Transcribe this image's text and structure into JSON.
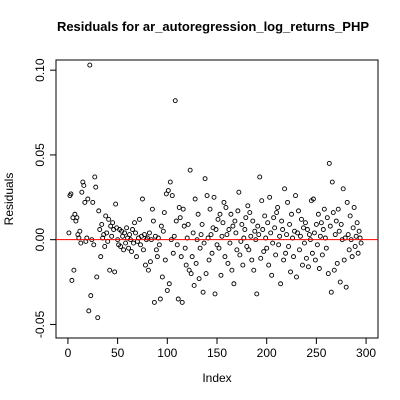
{
  "chart_data": {
    "type": "scatter",
    "title": "Residuals for ar_autoregression_log_returns_PHP",
    "xlabel": "Index",
    "ylabel": "Residuals",
    "xlim": [
      -12,
      312
    ],
    "xticks": [
      0,
      50,
      100,
      150,
      200,
      250,
      300
    ],
    "ylim": [
      -0.058,
      0.106
    ],
    "yticks": [
      -0.05,
      {
        "value": 0,
        "label": "0.00"
      },
      0.05,
      {
        "value": 0.1,
        "label": "0.10"
      }
    ],
    "hline": 0,
    "hline_color": "#ff0000",
    "color": "#000000",
    "values": [
      0.004,
      0.026,
      0.027,
      -0.024,
      0.013,
      -0.018,
      0.015,
      0.011,
      0.013,
      0.003,
      0.001,
      0.005,
      -0.002,
      0.028,
      0.034,
      0.032,
      0.022,
      -0.001,
      0.001,
      0.024,
      -0.042,
      0.103,
      -0.033,
      0.0,
      0.022,
      -0.003,
      0.037,
      0.031,
      -0.022,
      -0.046,
      0.017,
      0.006,
      -0.01,
      0.009,
      0.001,
      0.003,
      -0.004,
      0.014,
      0.004,
      -0.001,
      0.012,
      -0.018,
      0.008,
      0.002,
      0.01,
      0.006,
      -0.019,
      0.021,
      0.007,
      0.0,
      -0.003,
      0.006,
      -0.004,
      0.005,
      0.002,
      -0.006,
      0.004,
      -0.002,
      0.007,
      0.001,
      -0.005,
      0.003,
      0.0,
      -0.007,
      0.006,
      -0.002,
      0.01,
      0.004,
      -0.01,
      -0.001,
      0.001,
      0.012,
      -0.003,
      0.002,
      0.024,
      -0.006,
      0.003,
      -0.015,
      0.0,
      0.001,
      -0.018,
      0.004,
      -0.013,
      0.0,
      0.018,
      0.011,
      -0.037,
      0.002,
      -0.006,
      -0.01,
      0.001,
      -0.003,
      -0.035,
      0.008,
      -0.022,
      0.005,
      0.016,
      -0.012,
      0.027,
      -0.03,
      0.029,
      -0.026,
      0.034,
      0.0,
      0.026,
      -0.008,
      0.002,
      0.082,
      0.011,
      -0.003,
      -0.035,
      0.019,
      0.013,
      -0.01,
      -0.037,
      0.018,
      0.008,
      -0.005,
      -0.015,
      0.001,
      0.009,
      -0.018,
      0.041,
      -0.02,
      -0.01,
      0.004,
      -0.027,
      0.024,
      -0.014,
      0.0,
      0.015,
      -0.023,
      -0.005,
      0.003,
      0.009,
      -0.031,
      -0.002,
      0.036,
      -0.02,
      0.026,
      0.001,
      -0.012,
      0.018,
      0.003,
      -0.008,
      0.007,
      0.025,
      -0.032,
      0.006,
      -0.003,
      0.012,
      -0.005,
      0.015,
      -0.021,
      0.002,
      0.01,
      0.022,
      -0.01,
      0.019,
      0.003,
      -0.014,
      0.006,
      -0.002,
      0.015,
      -0.018,
      0.008,
      -0.026,
      0.011,
      0.004,
      -0.006,
      0.017,
      0.028,
      -0.009,
      -0.001,
      0.009,
      -0.015,
      0.001,
      0.006,
      0.013,
      -0.004,
      0.02,
      -0.006,
      0.016,
      0.002,
      -0.012,
      0.011,
      -0.018,
      0.005,
      0.0,
      -0.032,
      0.008,
      0.003,
      0.037,
      -0.011,
      0.023,
      0.006,
      -0.007,
      0.014,
      0.001,
      -0.005,
      0.01,
      -0.015,
      0.025,
      0.004,
      -0.021,
      -0.002,
      0.013,
      0.007,
      -0.009,
      0.016,
      0.019,
      -0.003,
      0.002,
      -0.026,
      0.011,
      0.006,
      -0.012,
      0.03,
      -0.008,
      0.003,
      0.022,
      -0.004,
      0.009,
      -0.019,
      0.015,
      0.001,
      -0.01,
      0.005,
      0.026,
      -0.022,
      0.004,
      0.017,
      -0.006,
      0.002,
      0.012,
      -0.015,
      0.007,
      -0.002,
      0.01,
      -0.011,
      0.006,
      -0.016,
      0.003,
      0.0,
      0.023,
      -0.008,
      0.024,
      0.004,
      -0.012,
      0.009,
      -0.003,
      0.015,
      -0.017,
      0.002,
      0.01,
      -0.009,
      0.006,
      0.018,
      0.001,
      -0.005,
      0.013,
      -0.02,
      0.045,
      0.008,
      -0.031,
      0.034,
      0.016,
      -0.018,
      0.003,
      0.011,
      -0.014,
      0.018,
      0.005,
      -0.025,
      0.009,
      0.0,
      0.03,
      -0.012,
      0.001,
      -0.028,
      0.022,
      0.003,
      -0.006,
      0.014,
      0.0,
      -0.01,
      0.007,
      0.019,
      -0.004,
      0.002,
      0.01,
      -0.008,
      0.005,
      0.001,
      -0.002
    ]
  }
}
